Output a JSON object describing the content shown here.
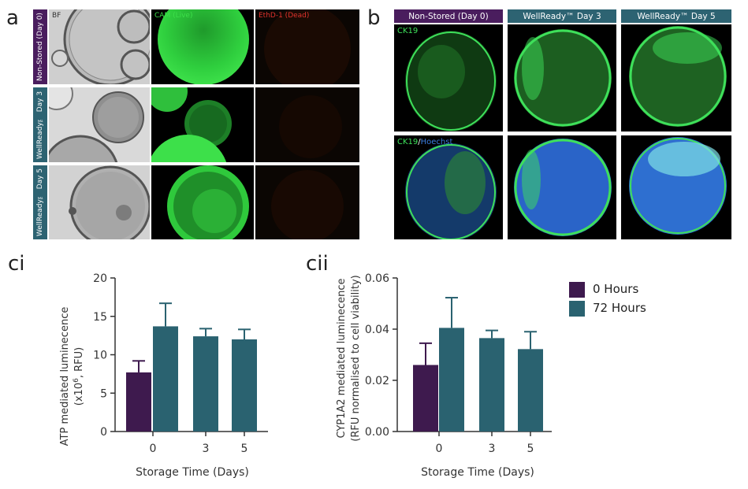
{
  "panel_letters": {
    "a": "a",
    "b": "b",
    "ci": "ci",
    "cii": "cii"
  },
  "panel_a": {
    "rows": [
      "Non-Stored (Day 0)",
      "WellReady™ Day 3",
      "WellReady™ Day 5"
    ],
    "channels": [
      "BF",
      "CAM (Live)",
      "EthD-1 (Dead)"
    ],
    "colors": {
      "nonstored": "#4a1d5e",
      "wellready": "#2d6372",
      "live": "#3de04a",
      "dead": "#6b2a08"
    }
  },
  "panel_b": {
    "columns": [
      "Non-Stored (Day 0)",
      "WellReady™ Day 3",
      "WellReady™ Day 5"
    ],
    "stain1": "CK19",
    "stain2_a": "CK19",
    "stain2_sep": "/",
    "stain2_b": "Hoechst",
    "colors": {
      "ck19": "#3ee05a",
      "hoechst": "#3a7de0"
    }
  },
  "legend": {
    "items": [
      {
        "label": "0 Hours",
        "color": "#3e1a4e"
      },
      {
        "label": "72 Hours",
        "color": "#2a6270"
      }
    ]
  },
  "chart_data": [
    {
      "id": "ci",
      "type": "bar",
      "ylabel_line1": "ATP mediated luminecence",
      "ylabel_line2_pre": "(x10",
      "ylabel_line2_sup": "6",
      "ylabel_line2_post": ", RFU)",
      "xlabel": "Storage Time (Days)",
      "ylim": [
        0,
        20
      ],
      "yticks": [
        0,
        5,
        10,
        15,
        20
      ],
      "ytick_labels": [
        "0",
        "5",
        "10",
        "15",
        "20"
      ],
      "categories": [
        "0",
        "3",
        "5"
      ],
      "series": [
        {
          "name": "0 Hours",
          "color": "#3e1a4e",
          "values": [
            7.7,
            null,
            null
          ],
          "errors": [
            1.5,
            null,
            null
          ]
        },
        {
          "name": "72 Hours",
          "color": "#2a6270",
          "values": [
            13.7,
            12.4,
            12.0
          ],
          "errors": [
            3.0,
            1.0,
            1.3
          ]
        }
      ]
    },
    {
      "id": "cii",
      "type": "bar",
      "ylabel_line1": "CYP1A2 mediated luminecence",
      "ylabel_line2_pre": "(RFU normalised to cell viability)",
      "ylabel_line2_sup": "",
      "ylabel_line2_post": "",
      "xlabel": "Storage Time (Days)",
      "ylim": [
        0,
        0.06
      ],
      "yticks": [
        0,
        0.02,
        0.04,
        0.06
      ],
      "ytick_labels": [
        "0.00",
        "0.02",
        "0.04",
        "0.06"
      ],
      "categories": [
        "0",
        "3",
        "5"
      ],
      "series": [
        {
          "name": "0 Hours",
          "color": "#3e1a4e",
          "values": [
            0.026,
            null,
            null
          ],
          "errors": [
            0.0085,
            null,
            null
          ]
        },
        {
          "name": "72 Hours",
          "color": "#2a6270",
          "values": [
            0.0405,
            0.0365,
            0.0322
          ],
          "errors": [
            0.0118,
            0.003,
            0.0068
          ]
        }
      ]
    }
  ]
}
